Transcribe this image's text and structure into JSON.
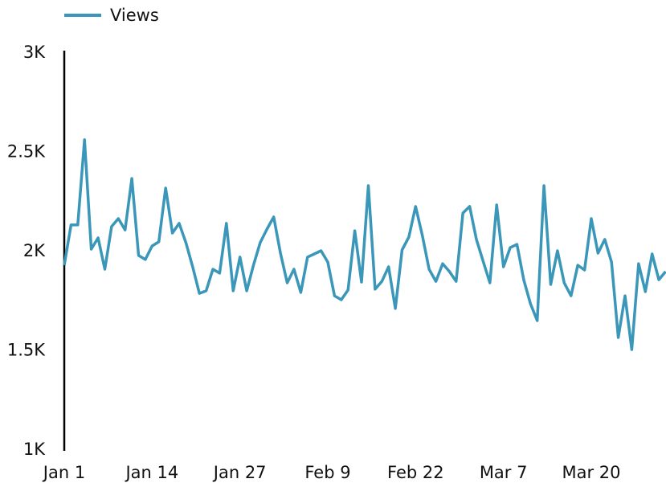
{
  "chart_data": {
    "type": "line",
    "x": [
      0,
      1,
      2,
      3,
      4,
      5,
      6,
      7,
      8,
      9,
      10,
      11,
      12,
      13,
      14,
      15,
      16,
      17,
      18,
      19,
      20,
      21,
      22,
      23,
      24,
      25,
      26,
      27,
      28,
      29,
      30,
      31,
      32,
      33,
      34,
      35,
      36,
      37,
      38,
      39,
      40,
      41,
      42,
      43,
      44,
      45,
      46,
      47,
      48,
      49,
      50,
      51,
      52,
      53,
      54,
      55,
      56,
      57,
      58,
      59,
      60,
      61,
      62,
      63,
      64,
      65,
      66,
      67,
      68,
      69,
      70,
      71,
      72,
      73,
      74,
      75,
      76,
      77,
      78,
      79,
      80,
      81,
      82,
      83,
      84,
      85,
      86,
      87,
      88,
      89
    ],
    "series": [
      {
        "name": "Views",
        "color": "#3a97b9",
        "values": [
          1931,
          2134,
          2134,
          2563,
          2012,
          2069,
          1911,
          2126,
          2166,
          2109,
          2368,
          1980,
          1960,
          2028,
          2049,
          2320,
          2093,
          2142,
          2045,
          1923,
          1789,
          1802,
          1911,
          1891,
          2142,
          1802,
          1972,
          1802,
          1931,
          2045,
          2113,
          2174,
          1992,
          1842,
          1911,
          1794,
          1972,
          1988,
          2004,
          1947,
          1777,
          1757,
          1806,
          2105,
          1846,
          2332,
          1810,
          1850,
          1923,
          1713,
          2008,
          2073,
          2227,
          2081,
          1911,
          1850,
          1939,
          1899,
          1850,
          2194,
          2227,
          2061,
          1951,
          1842,
          2235,
          1923,
          2020,
          2036,
          1858,
          1737,
          1652,
          2332,
          1834,
          2004,
          1842,
          1777,
          1931,
          1907,
          2166,
          1992,
          2061,
          1947,
          1567,
          1777,
          1506,
          1939,
          1798,
          1988,
          1858,
          1899
        ]
      }
    ],
    "xlim": [
      0,
      89
    ],
    "xticks": [
      {
        "value": 0,
        "label": "Jan 1"
      },
      {
        "value": 13,
        "label": "Jan 14"
      },
      {
        "value": 26,
        "label": "Jan 27"
      },
      {
        "value": 39,
        "label": "Feb 9"
      },
      {
        "value": 52,
        "label": "Feb 22"
      },
      {
        "value": 65,
        "label": "Mar 7"
      },
      {
        "value": 78,
        "label": "Mar 20"
      }
    ],
    "ylim": [
      1000,
      3000
    ],
    "yticks": [
      {
        "value": 1000,
        "label": "1K"
      },
      {
        "value": 1500,
        "label": "1.5K"
      },
      {
        "value": 2000,
        "label": "2K"
      },
      {
        "value": 2500,
        "label": "2.5K"
      },
      {
        "value": 3000,
        "label": "3K"
      }
    ],
    "grid": false,
    "legend": "top-left"
  }
}
